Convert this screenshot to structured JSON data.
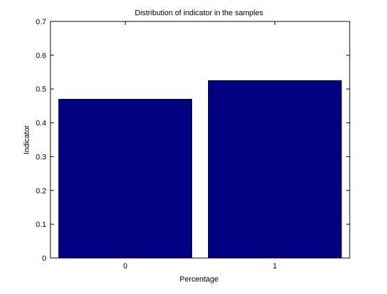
{
  "chart_data": {
    "type": "bar",
    "title": "Distribution of indicator in the samples",
    "xlabel": "Percentage",
    "ylabel": "Indicator",
    "categories": [
      "0",
      "1"
    ],
    "values": [
      0.47,
      0.525
    ],
    "ylim": [
      0,
      0.7
    ],
    "yticks": [
      "0",
      "0.1",
      "0.2",
      "0.3",
      "0.4",
      "0.5",
      "0.6",
      "0.7"
    ],
    "grid": false,
    "legend": "none",
    "colors": {
      "bar_fill": "#000080",
      "bar_edge": "#000000",
      "axis": "#000000",
      "background": "#ffffff"
    }
  }
}
